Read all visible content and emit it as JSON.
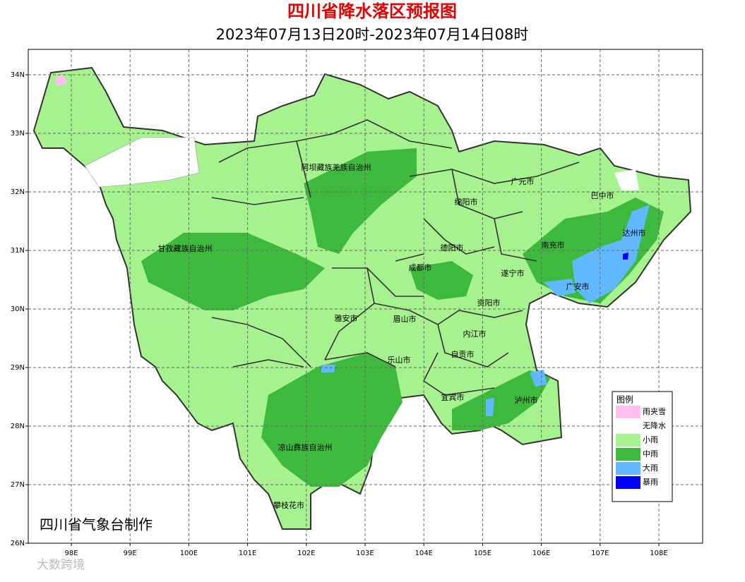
{
  "header": {
    "title": "四川省降水落区预报图",
    "subtitle": "2023年07月13日20时-2023年07月14日08时"
  },
  "map": {
    "lat_ticks": [
      {
        "value": 34,
        "label": "34N"
      },
      {
        "value": 33,
        "label": "33N"
      },
      {
        "value": 32,
        "label": "32N"
      },
      {
        "value": 31,
        "label": "31N"
      },
      {
        "value": 30,
        "label": "30N"
      },
      {
        "value": 29,
        "label": "29N"
      },
      {
        "value": 28,
        "label": "28N"
      },
      {
        "value": 27,
        "label": "27N"
      },
      {
        "value": 26,
        "label": "26N"
      }
    ],
    "lon_ticks": [
      {
        "value": 98,
        "label": "98E"
      },
      {
        "value": 99,
        "label": "99E"
      },
      {
        "value": 100,
        "label": "100E"
      },
      {
        "value": 101,
        "label": "101E"
      },
      {
        "value": 102,
        "label": "102E"
      },
      {
        "value": 103,
        "label": "103E"
      },
      {
        "value": 104,
        "label": "104E"
      },
      {
        "value": 105,
        "label": "105E"
      },
      {
        "value": 106,
        "label": "106E"
      },
      {
        "value": 107,
        "label": "107E"
      },
      {
        "value": 108,
        "label": "108E"
      }
    ],
    "places": [
      "阿坝藏族羌族自治州",
      "广元市",
      "巴中市",
      "绵阳市",
      "达州市",
      "甘孜藏族自治州",
      "德阳市",
      "南充市",
      "成都市",
      "遂宁市",
      "广安市",
      "资阳市",
      "雅安市",
      "眉山市",
      "内江市",
      "自贡市",
      "乐山市",
      "宜宾市",
      "泸州市",
      "凉山彝族自治州",
      "攀枝花市"
    ],
    "legend": {
      "title": "图例",
      "items": [
        {
          "label": "雨夹雪",
          "color": "#ffbff0"
        },
        {
          "label": "无降水",
          "color": "#ffffff"
        },
        {
          "label": "小雨",
          "color": "#a6f28f"
        },
        {
          "label": "中雨",
          "color": "#3dba3d"
        },
        {
          "label": "大雨",
          "color": "#61b8ff"
        },
        {
          "label": "暴雨",
          "color": "#0000fe"
        }
      ]
    },
    "credit": "四川省气象台制作"
  },
  "watermark": "大数跨境"
}
